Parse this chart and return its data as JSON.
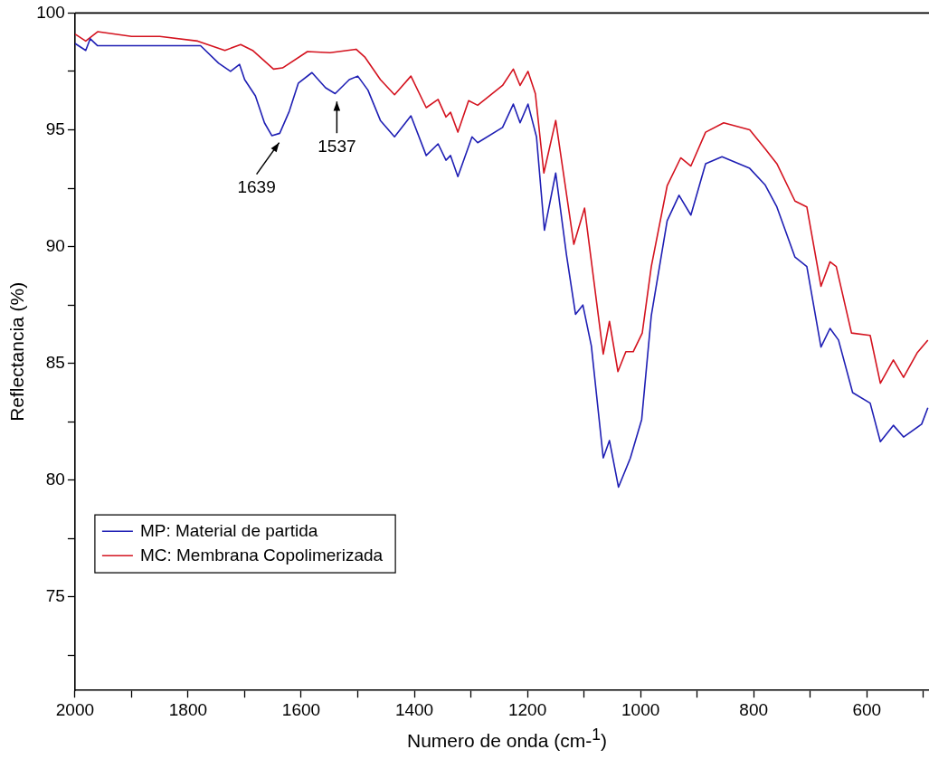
{
  "chart_data": {
    "type": "line",
    "xlabel": "Numero de onda (cm-$^{1}$)",
    "ylabel": "Reflectancia (%)",
    "xlim": [
      2000,
      490
    ],
    "ylim": [
      71,
      100
    ],
    "xticks": [
      2000,
      {
        "value": 1900,
        "label": null
      },
      1800,
      {
        "value": 1700,
        "label": null
      },
      1600,
      {
        "value": 1500,
        "label": null
      },
      1400,
      {
        "value": 1300,
        "label": null
      },
      1200,
      {
        "value": 1100,
        "label": null
      },
      1000,
      {
        "value": 900,
        "label": null
      },
      800,
      {
        "value": 700,
        "label": null
      },
      600,
      {
        "value": 500,
        "label": null
      }
    ],
    "yticks": [
      {
        "value": 72.5,
        "label": null
      },
      75,
      {
        "value": 77.5,
        "label": null
      },
      80,
      {
        "value": 82.5,
        "label": null
      },
      85,
      {
        "value": 87.5,
        "label": null
      },
      90,
      {
        "value": 92.5,
        "label": null
      },
      95,
      {
        "value": 97.5,
        "label": null
      },
      100
    ],
    "grid": false,
    "legend": "bottom left",
    "marker": "none",
    "line_style": "solid",
    "series": [
      {
        "name": "MP: Material de partida",
        "color": "#1f1fb4",
        "x": [
          2000,
          1981,
          1973,
          1960,
          1900,
          1850,
          1778,
          1746,
          1725,
          1709,
          1700,
          1681,
          1665,
          1652,
          1638,
          1621,
          1605,
          1581,
          1557,
          1540,
          1515,
          1500,
          1482,
          1460,
          1435,
          1406,
          1379,
          1358,
          1344,
          1336,
          1323,
          1298,
          1288,
          1244,
          1225,
          1213,
          1199,
          1184,
          1170,
          1150,
          1131,
          1115,
          1102,
          1087,
          1066,
          1055,
          1039,
          1018,
          998,
          981,
          953,
          932,
          911,
          885,
          856,
          807,
          780,
          759,
          727,
          706,
          681,
          665,
          650,
          625,
          594,
          576,
          553,
          535,
          503,
          492
        ],
        "values": [
          98.7,
          98.4,
          98.9,
          98.6,
          98.6,
          98.6,
          98.6,
          97.85,
          97.5,
          97.8,
          97.15,
          96.45,
          95.3,
          94.75,
          94.85,
          95.8,
          97.0,
          97.45,
          96.8,
          96.55,
          97.15,
          97.3,
          96.7,
          95.4,
          94.7,
          95.6,
          93.9,
          94.4,
          93.7,
          93.9,
          93.0,
          94.7,
          94.45,
          95.1,
          96.1,
          95.3,
          96.1,
          94.7,
          90.7,
          93.15,
          89.65,
          87.1,
          87.5,
          85.75,
          80.95,
          81.7,
          79.7,
          80.95,
          82.6,
          87.05,
          91.1,
          92.2,
          91.35,
          93.55,
          93.85,
          93.35,
          92.65,
          91.7,
          89.55,
          89.15,
          85.7,
          86.5,
          86.0,
          83.75,
          83.3,
          81.65,
          82.35,
          81.85,
          82.4,
          83.1
        ]
      },
      {
        "name": "MC: Membrana Copolimerizada",
        "color": "#d4131f",
        "x": [
          2000,
          1981,
          1960,
          1900,
          1850,
          1783,
          1735,
          1707,
          1686,
          1649,
          1633,
          1589,
          1549,
          1503,
          1487,
          1460,
          1435,
          1406,
          1379,
          1358,
          1344,
          1336,
          1323,
          1304,
          1288,
          1244,
          1225,
          1213,
          1199,
          1186,
          1171,
          1150,
          1118,
          1099,
          1066,
          1055,
          1040,
          1026,
          1013,
          997,
          981,
          953,
          929,
          911,
          885,
          853,
          807,
          780,
          759,
          727,
          706,
          681,
          665,
          654,
          627,
          594,
          576,
          553,
          535,
          511,
          492
        ],
        "values": [
          99.1,
          98.8,
          99.2,
          99.0,
          99.0,
          98.8,
          98.4,
          98.65,
          98.4,
          97.6,
          97.65,
          98.35,
          98.3,
          98.45,
          98.1,
          97.15,
          96.5,
          97.3,
          95.95,
          96.3,
          95.55,
          95.75,
          94.9,
          96.25,
          96.05,
          96.9,
          97.6,
          96.9,
          97.5,
          96.55,
          93.15,
          95.4,
          90.1,
          91.65,
          85.4,
          86.8,
          84.65,
          85.5,
          85.5,
          86.3,
          89.15,
          92.6,
          93.8,
          93.45,
          94.9,
          95.3,
          95.0,
          94.2,
          93.55,
          91.95,
          91.7,
          88.3,
          89.35,
          89.15,
          86.3,
          86.2,
          84.15,
          85.15,
          84.4,
          85.45,
          86.0
        ]
      }
    ],
    "annotations": [
      {
        "text": "1639",
        "x": 1639,
        "y": 94.8
      },
      {
        "text": "1537",
        "x": 1537,
        "y": 96.56
      }
    ]
  }
}
